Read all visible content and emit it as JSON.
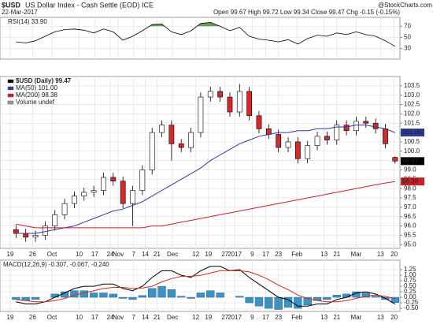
{
  "header": {
    "symbol": "$USD",
    "title": "US Dollar Index - Cash Settle (EOD) ICE",
    "date": "22-Mar-2017",
    "quote": "Open 99.67 High 99.72 Low 99.34 Close 99.47 Chg -0.15 (-0.15%)",
    "source": "@StockCharts.com"
  },
  "chart_data": [
    {
      "type": "candlestick",
      "grid": true,
      "xlim": [
        -1,
        39.5
      ],
      "xticks": [
        {
          "value": -0.6,
          "label": "19"
        },
        {
          "value": 1.7,
          "label": "26"
        },
        {
          "value": 3.7,
          "label": "Oct"
        },
        {
          "value": 6.5,
          "label": "10"
        },
        {
          "value": 8.1,
          "label": "17"
        },
        {
          "value": 9.7,
          "label": "24"
        },
        {
          "value": 10.5,
          "label": "Nov"
        },
        {
          "value": 12.1,
          "label": "7"
        },
        {
          "value": 13.3,
          "label": "14"
        },
        {
          "value": 14.5,
          "label": "21"
        },
        {
          "value": 16.1,
          "label": "Dec"
        },
        {
          "value": 18.5,
          "label": "12"
        },
        {
          "value": 19.8,
          "label": "19"
        },
        {
          "value": 21.5,
          "label": "27"
        },
        {
          "value": 22.5,
          "label": "2017"
        },
        {
          "value": 24.3,
          "label": "9"
        },
        {
          "value": 25.7,
          "label": "17"
        },
        {
          "value": 27,
          "label": "23"
        },
        {
          "value": 28.9,
          "label": "Feb"
        },
        {
          "value": 31.7,
          "label": "13"
        },
        {
          "value": 33,
          "label": "21"
        },
        {
          "value": 35,
          "label": "Mar"
        },
        {
          "value": 37.5,
          "label": "13"
        },
        {
          "value": 38.9,
          "label": "20"
        }
      ],
      "ylim": [
        94.8,
        104.0
      ],
      "yticks": [
        103.5,
        {
          "value": 103,
          "label": "103.0"
        },
        102.5,
        {
          "value": 102,
          "label": "102.0"
        },
        101.5,
        {
          "value": 101,
          "label": "101.0"
        },
        100.5,
        {
          "value": 100,
          "label": "100.0"
        },
        99.5,
        {
          "value": 99,
          "label": "99.0"
        },
        98.5,
        {
          "value": 98,
          "label": "98.0"
        },
        97.5,
        {
          "value": 97,
          "label": "97.0"
        },
        96.5,
        {
          "value": 96,
          "label": "96.0"
        },
        95.5,
        {
          "value": 95,
          "label": "95.0"
        }
      ],
      "candles": {
        "name": "$USD (Daily) 99.47",
        "last_label": "99.47",
        "color": "#000000",
        "up_color": "#ffffff",
        "down_color": "#d42a2a",
        "open": [
          95.8,
          95.6,
          95.4,
          95.5,
          96.0,
          96.6,
          97.2,
          97.6,
          97.8,
          97.9,
          98.6,
          98.4,
          97.2,
          97.9,
          99.0,
          101.0,
          101.4,
          100.4,
          100.2,
          101.0,
          102.9,
          103.2,
          102.9,
          102.1,
          103.2,
          101.9,
          101.2,
          100.9,
          100.2,
          100.5,
          99.6,
          100.3,
          100.8,
          100.6,
          101.4,
          101.1,
          101.6,
          101.5,
          101.2,
          99.67
        ],
        "high": [
          96.05,
          95.85,
          95.75,
          96.25,
          96.85,
          97.45,
          97.85,
          98.05,
          98.15,
          98.85,
          98.85,
          98.65,
          98.15,
          99.25,
          101.25,
          101.65,
          101.65,
          100.65,
          101.25,
          103.15,
          103.45,
          103.45,
          103.15,
          103.6,
          103.45,
          102.15,
          101.45,
          101.15,
          100.75,
          100.75,
          100.55,
          101.05,
          101.05,
          101.65,
          101.65,
          101.85,
          101.85,
          101.75,
          101.45,
          99.72
        ],
        "low": [
          95.35,
          95.15,
          95.15,
          95.25,
          95.75,
          96.35,
          96.95,
          97.35,
          97.55,
          97.65,
          98.15,
          96.95,
          96.0,
          97.65,
          98.75,
          100.75,
          99.5,
          99.95,
          99.95,
          100.75,
          102.65,
          102.65,
          101.85,
          101.85,
          101.65,
          100.95,
          100.65,
          99.95,
          99.95,
          99.35,
          99.35,
          100.05,
          100.35,
          100.35,
          100.85,
          100.85,
          101.25,
          100.95,
          100.15,
          99.34
        ],
        "close": [
          95.6,
          95.4,
          95.5,
          96.0,
          96.6,
          97.2,
          97.6,
          97.8,
          97.9,
          98.6,
          98.4,
          97.2,
          97.9,
          99.0,
          101.0,
          101.4,
          100.4,
          100.2,
          101.0,
          102.9,
          103.2,
          102.9,
          102.1,
          103.2,
          101.9,
          101.2,
          100.9,
          100.2,
          100.5,
          99.6,
          100.3,
          100.8,
          100.6,
          101.4,
          101.1,
          101.6,
          101.5,
          101.2,
          100.4,
          99.47
        ]
      },
      "series": [
        {
          "name": "MA(50) 101.00",
          "last_label": "101.00",
          "color": "#2a3a9a",
          "values": [
            95.6,
            95.6,
            95.6,
            95.7,
            95.8,
            95.9,
            96.0,
            96.2,
            96.4,
            96.6,
            96.8,
            96.9,
            97.1,
            97.3,
            97.6,
            97.9,
            98.2,
            98.5,
            98.8,
            99.1,
            99.5,
            99.8,
            100.1,
            100.4,
            100.6,
            100.8,
            100.9,
            101.0,
            101.0,
            101.1,
            101.1,
            101.2,
            101.2,
            101.3,
            101.3,
            101.4,
            101.4,
            101.3,
            101.2,
            101.0
          ]
        },
        {
          "name": "MA(200) 98.38",
          "last_label": "98.38",
          "color": "#c8202a",
          "values": [
            96.1,
            96.0,
            95.9,
            95.9,
            95.9,
            95.9,
            95.9,
            95.9,
            95.9,
            95.9,
            95.9,
            95.9,
            95.9,
            95.9,
            96.0,
            96.0,
            96.1,
            96.2,
            96.3,
            96.4,
            96.5,
            96.6,
            96.7,
            96.8,
            96.9,
            97.0,
            97.1,
            97.2,
            97.3,
            97.4,
            97.5,
            97.6,
            97.7,
            97.8,
            97.9,
            98.0,
            98.1,
            98.2,
            98.3,
            98.38
          ]
        },
        {
          "name": "Volume undef",
          "color": "#999999"
        }
      ]
    },
    {
      "type": "line",
      "title": "RSI(14) 33.90",
      "grid": true,
      "xlim": [
        -1,
        39.5
      ],
      "ylim": [
        11,
        86
      ],
      "yticks": [
        70,
        50,
        30
      ],
      "band_fill": "#4f8a3c",
      "series": [
        {
          "color": "#000000",
          "values": [
            42,
            40,
            44,
            52,
            60,
            64,
            65,
            63,
            58,
            65,
            60,
            45,
            52,
            62,
            73,
            74,
            60,
            55,
            62,
            75,
            77,
            70,
            62,
            68,
            52,
            47,
            45,
            42,
            46,
            38,
            48,
            54,
            52,
            58,
            55,
            60,
            55,
            52,
            44,
            33.9
          ]
        }
      ]
    },
    {
      "type": "macd",
      "title": "MACD(12,26,9) -0.307, -0.067, -0.240",
      "grid": true,
      "xlim": [
        -1,
        39.5
      ],
      "ylim": [
        -0.64,
        1.68
      ],
      "xticks": [
        {
          "value": -0.6,
          "label": "19"
        },
        {
          "value": 1.7,
          "label": "26"
        },
        {
          "value": 3.7,
          "label": "Oct"
        },
        {
          "value": 6.5,
          "label": "10"
        },
        {
          "value": 8.1,
          "label": "17"
        },
        {
          "value": 9.7,
          "label": "24"
        },
        {
          "value": 10.5,
          "label": "Nov"
        },
        {
          "value": 12.1,
          "label": "7"
        },
        {
          "value": 13.3,
          "label": "14"
        },
        {
          "value": 14.5,
          "label": "21"
        },
        {
          "value": 16.1,
          "label": "Dec"
        },
        {
          "value": 18.5,
          "label": "12"
        },
        {
          "value": 19.8,
          "label": "19"
        },
        {
          "value": 21.5,
          "label": "27"
        },
        {
          "value": 22.5,
          "label": "2017"
        },
        {
          "value": 24.3,
          "label": "9"
        },
        {
          "value": 25.7,
          "label": "17"
        },
        {
          "value": 27,
          "label": "23"
        },
        {
          "value": 28.9,
          "label": "Feb"
        },
        {
          "value": 31.7,
          "label": "13"
        },
        {
          "value": 33,
          "label": "21"
        },
        {
          "value": 35,
          "label": "Mar"
        },
        {
          "value": 37.5,
          "label": "13"
        },
        {
          "value": 38.9,
          "label": "20"
        }
      ],
      "yticks": [
        1.25,
        {
          "value": 1,
          "label": "1.00"
        },
        0.75,
        {
          "value": 0.5,
          "label": "0.50"
        },
        0.25,
        {
          "value": 0,
          "label": "0.00"
        },
        -0.25,
        {
          "value": -0.5,
          "label": "-0.50"
        }
      ],
      "histogram": {
        "color": "#3b93c4",
        "values": [
          -0.1,
          -0.15,
          -0.1,
          0.0,
          0.15,
          0.25,
          0.3,
          0.3,
          0.2,
          0.2,
          0.15,
          -0.05,
          -0.1,
          0.08,
          0.4,
          0.5,
          0.35,
          0.05,
          -0.05,
          0.2,
          0.3,
          0.2,
          0.0,
          0.05,
          -0.25,
          -0.4,
          -0.5,
          -0.55,
          -0.45,
          -0.5,
          -0.35,
          -0.15,
          -0.1,
          0.1,
          0.15,
          0.25,
          0.2,
          0.05,
          -0.1,
          -0.24
        ]
      },
      "series": [
        {
          "color": "#000000",
          "values": [
            -0.2,
            -0.3,
            -0.3,
            -0.2,
            0.0,
            0.2,
            0.4,
            0.5,
            0.5,
            0.6,
            0.6,
            0.4,
            0.3,
            0.5,
            0.9,
            1.2,
            1.2,
            1.0,
            0.9,
            1.2,
            1.4,
            1.4,
            1.2,
            1.25,
            0.9,
            0.6,
            0.3,
            0.0,
            -0.1,
            -0.4,
            -0.4,
            -0.3,
            -0.3,
            -0.1,
            0.0,
            0.2,
            0.25,
            0.15,
            -0.05,
            -0.307
          ]
        },
        {
          "color": "#d42a2a",
          "values": [
            -0.1,
            -0.15,
            -0.2,
            -0.2,
            -0.15,
            -0.05,
            0.1,
            0.2,
            0.3,
            0.4,
            0.45,
            0.45,
            0.4,
            0.42,
            0.5,
            0.7,
            0.85,
            0.95,
            0.95,
            1.0,
            1.1,
            1.2,
            1.2,
            1.2,
            1.15,
            1.0,
            0.8,
            0.55,
            0.35,
            0.1,
            -0.05,
            -0.15,
            -0.2,
            -0.2,
            -0.15,
            -0.05,
            0.05,
            0.1,
            0.05,
            -0.067
          ]
        }
      ]
    }
  ]
}
